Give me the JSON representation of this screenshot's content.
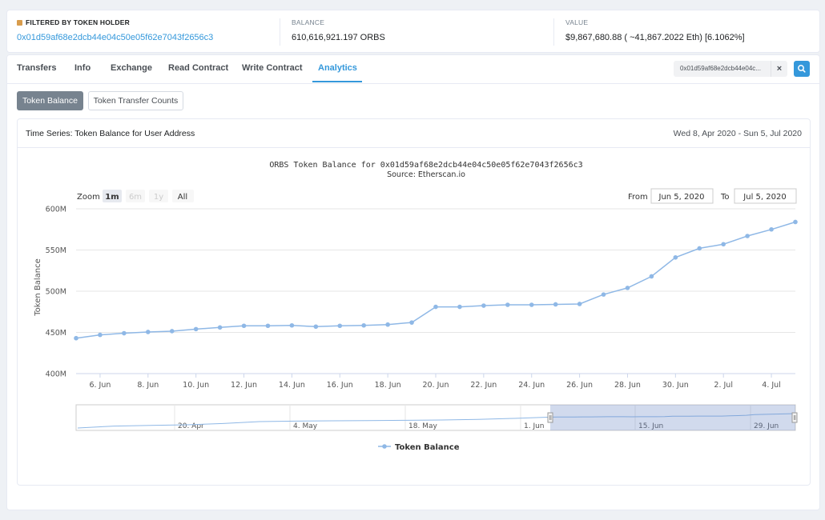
{
  "summary": {
    "filter_label": "FILTERED BY TOKEN HOLDER",
    "holder_address": "0x01d59af68e2dcb44e04c50e05f62e7043f2656c3",
    "balance_label": "BALANCE",
    "balance_value": "610,616,921.197 ORBS",
    "value_label": "VALUE",
    "value_value": "$9,867,680.88 ( ~41,867.2022 Eth) [6.1062%]"
  },
  "tabs": [
    {
      "label": "Transfers"
    },
    {
      "label": "Info"
    },
    {
      "label": "Exchange"
    },
    {
      "label": "Read Contract"
    },
    {
      "label": "Write Contract"
    },
    {
      "label": "Analytics"
    }
  ],
  "address_filter": {
    "text": "0x01d59af68e2dcb44e04c...",
    "clear": "×"
  },
  "buttons": {
    "token_balance": "Token Balance",
    "transfer_counts": "Token Transfer Counts"
  },
  "chart_card": {
    "title": "Time Series: Token Balance for User Address",
    "date_range": "Wed 8, Apr 2020 - Sun 5, Jul 2020"
  },
  "zoom": {
    "label": "Zoom",
    "options": [
      "1m",
      "6m",
      "1y",
      "All"
    ],
    "from_label": "From",
    "from_value": "Jun 5, 2020",
    "to_label": "To",
    "to_value": "Jul 5, 2020"
  },
  "navigator": {
    "labels": [
      "20. Apr",
      "4. May",
      "18. May",
      "1. Jun",
      "15. Jun",
      "29. Jun"
    ]
  },
  "colors": {
    "accent": "#3498db",
    "series": "#8fb8e6"
  },
  "chart_data": {
    "type": "line",
    "title": "ORBS Token Balance for 0x01d59af68e2dcb44e04c50e05f62e7043f2656c3",
    "subtitle": "Source: Etherscan.io",
    "ylabel": "Token Balance",
    "xlabel": "",
    "ylim": [
      400,
      600
    ],
    "y_unit": "M",
    "y_ticks": [
      "400M",
      "450M",
      "500M",
      "550M",
      "600M"
    ],
    "x_ticks": [
      "6. Jun",
      "8. Jun",
      "10. Jun",
      "12. Jun",
      "14. Jun",
      "16. Jun",
      "18. Jun",
      "20. Jun",
      "22. Jun",
      "24. Jun",
      "26. Jun",
      "28. Jun",
      "30. Jun",
      "2. Jul",
      "4. Jul"
    ],
    "grid": true,
    "legend": "bottom-center",
    "series": [
      {
        "name": "Token Balance",
        "x": [
          "Jun 5",
          "Jun 6",
          "Jun 7",
          "Jun 8",
          "Jun 9",
          "Jun 10",
          "Jun 11",
          "Jun 12",
          "Jun 13",
          "Jun 14",
          "Jun 15",
          "Jun 16",
          "Jun 17",
          "Jun 18",
          "Jun 19",
          "Jun 20",
          "Jun 21",
          "Jun 22",
          "Jun 23",
          "Jun 24",
          "Jun 25",
          "Jun 26",
          "Jun 27",
          "Jun 28",
          "Jun 29",
          "Jun 30",
          "Jul 1",
          "Jul 2",
          "Jul 3",
          "Jul 4",
          "Jul 5"
        ],
        "values": [
          443,
          447,
          449,
          450.5,
          451.5,
          454,
          456,
          458,
          458,
          458.5,
          457,
          458,
          458.5,
          459.5,
          462,
          481,
          481,
          482.5,
          483.5,
          483.5,
          484,
          484.5,
          496,
          504,
          518,
          541,
          552,
          557,
          567,
          575,
          584
        ]
      }
    ]
  }
}
